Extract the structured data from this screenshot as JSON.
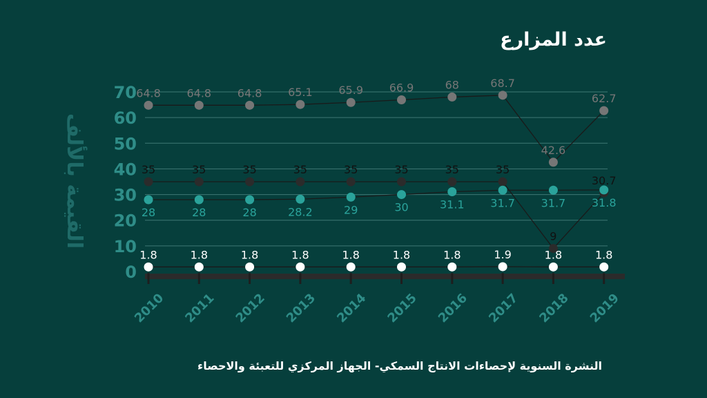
{
  "chart_data": {
    "type": "line",
    "title": "عدد المزارع",
    "ylabel": "القيمة بالألف",
    "xlabel": "",
    "source": "النشرة السنوية لإحصاءات الانتاج السمكي- الجهاز المركزي للتعبئة والاحصاء",
    "categories": [
      "2010",
      "2011",
      "2012",
      "2013",
      "2014",
      "2015",
      "2016",
      "2017",
      "2018",
      "2019"
    ],
    "ylim": [
      0,
      70
    ],
    "yticks": [
      0,
      10,
      20,
      30,
      40,
      50,
      60,
      70
    ],
    "grid": true,
    "series": [
      {
        "color": "#767676",
        "values": [
          64.8,
          64.8,
          64.8,
          65.1,
          65.9,
          66.9,
          68,
          68.7,
          42.6,
          62.7
        ]
      },
      {
        "color": "#2b2b2b",
        "values": [
          35,
          35,
          35,
          35,
          35,
          35,
          35,
          35,
          9,
          30.7
        ]
      },
      {
        "color": "#2aa39b",
        "values": [
          28,
          28,
          28,
          28.2,
          29,
          30,
          31.1,
          31.7,
          31.7,
          31.8
        ]
      },
      {
        "color": "#ffffff",
        "values": [
          1.8,
          1.8,
          1.8,
          1.8,
          1.8,
          1.8,
          1.8,
          1.9,
          1.8,
          1.8
        ]
      }
    ]
  }
}
